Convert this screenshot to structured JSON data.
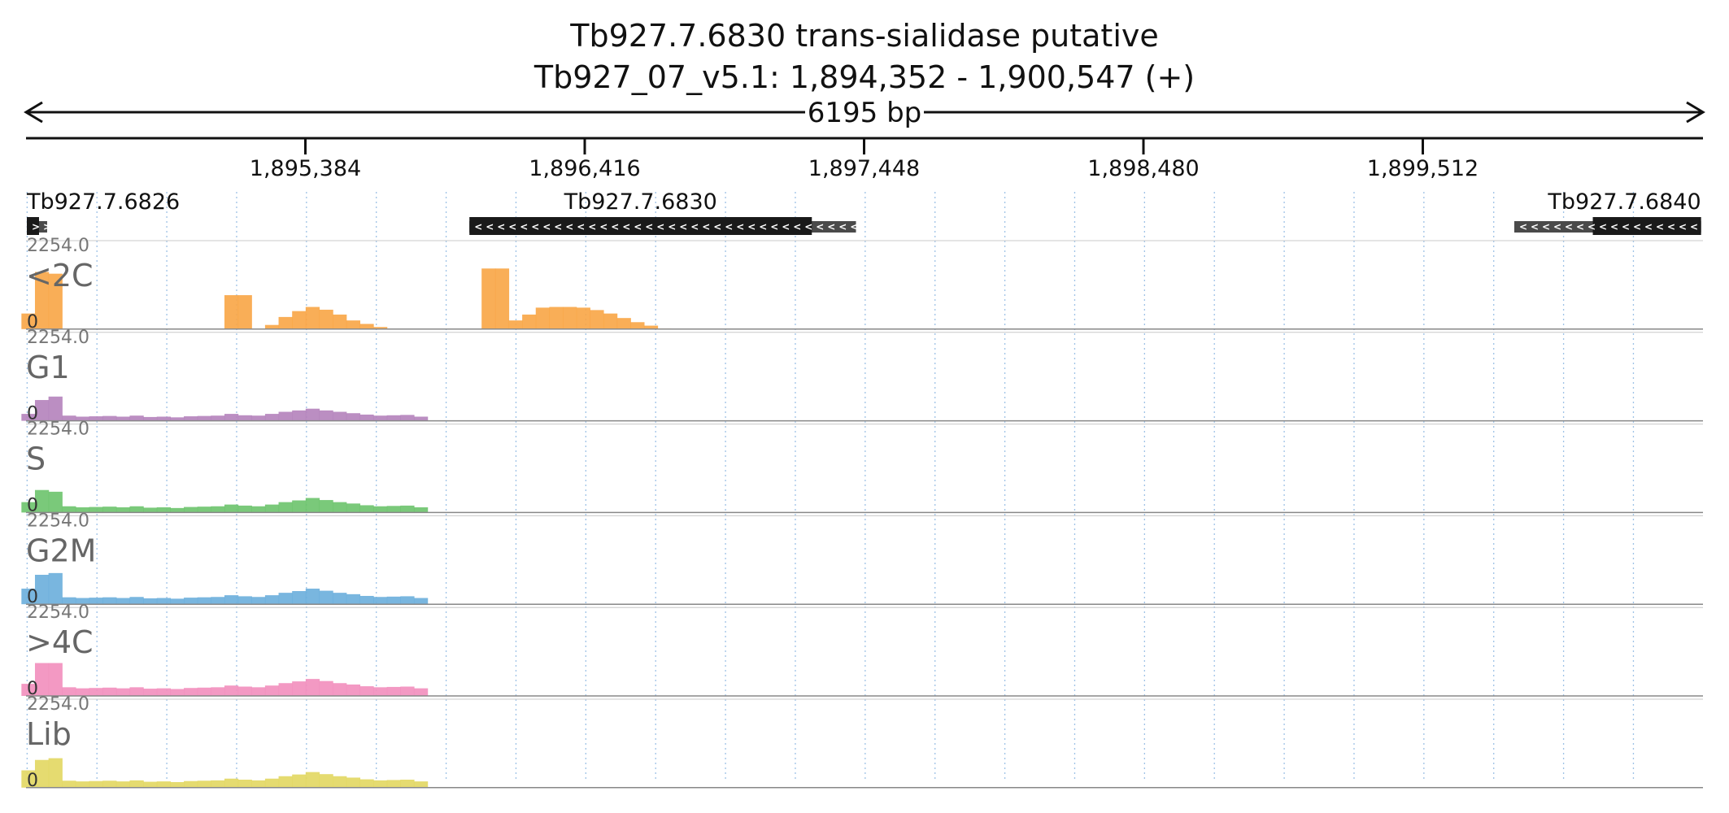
{
  "chart_data": {
    "type": "area",
    "title_line1": "Tb927.7.6830  trans-sialidase  putative",
    "title_line2": "Tb927_07_v5.1: 1,894,352 - 1,900,547 (+)",
    "span_label": "6195 bp",
    "region": {
      "start": 1894352,
      "end": 1900547
    },
    "ticks": [
      {
        "pos": 1895384,
        "label": "1,895,384"
      },
      {
        "pos": 1896416,
        "label": "1,896,416"
      },
      {
        "pos": 1897448,
        "label": "1,897,448"
      },
      {
        "pos": 1898480,
        "label": "1,898,480"
      },
      {
        "pos": 1899512,
        "label": "1,899,512"
      }
    ],
    "genes": [
      {
        "id": "Tb927.7.6826",
        "strand": "+",
        "utr": [
          1894355,
          1894430
        ],
        "cds": [
          1894355,
          1894400
        ],
        "label_anchor": "start"
      },
      {
        "id": "Tb927.7.6830",
        "strand": "-",
        "utr": [
          1895990,
          1897418
        ],
        "cds": [
          1895990,
          1897255
        ],
        "label_anchor": "cds-middle"
      },
      {
        "id": "Tb927.7.6840",
        "strand": "-",
        "utr": [
          1899850,
          1900540
        ],
        "cds": [
          1900140,
          1900540
        ],
        "label_anchor": "end"
      }
    ],
    "track_ymax_label": "2254.0",
    "track_ymin_label": "0",
    "ylim": [
      0,
      2254
    ],
    "x": [
      1894360,
      1894410,
      1894460,
      1894510,
      1894560,
      1894610,
      1894660,
      1894710,
      1894760,
      1894810,
      1894860,
      1894910,
      1894960,
      1895010,
      1895060,
      1895110,
      1895160,
      1895210,
      1895260,
      1895310,
      1895360,
      1895410,
      1895460,
      1895510,
      1895560,
      1895610,
      1895660,
      1895710,
      1895760,
      1895810,
      1895860,
      1895910,
      1895960,
      1896010,
      1896060,
      1896110,
      1896160,
      1896210,
      1896260,
      1896310,
      1896360,
      1896410,
      1896460,
      1896510,
      1896560,
      1896610,
      1896660,
      1896710,
      1896760,
      1896810,
      1896860,
      1896910,
      1896960,
      1897010,
      1897060,
      1897110,
      1897160,
      1897210,
      1897260,
      1897310,
      1897360,
      1897410,
      1897460,
      1897510,
      1897560,
      1897610,
      1897660,
      1897710,
      1897760,
      1897810,
      1897860,
      1897910,
      1897960,
      1898010,
      1898060,
      1898110,
      1898160,
      1898210,
      1898260,
      1898310,
      1898360,
      1898410,
      1898460,
      1898510,
      1898560,
      1898610,
      1898660,
      1898710,
      1898760,
      1898810,
      1898860,
      1898910,
      1898960,
      1899010,
      1899060,
      1899110,
      1899160,
      1899210,
      1899260,
      1899310,
      1899360,
      1899410,
      1899460,
      1899510,
      1899560,
      1899610,
      1899660,
      1899710,
      1899760,
      1899810,
      1899860,
      1899910,
      1899960,
      1900010,
      1900060,
      1900110,
      1900160,
      1900210,
      1900260,
      1900310,
      1900360,
      1900410,
      1900460,
      1900510,
      1900540
    ],
    "series": [
      {
        "name": "<2C",
        "color": "#f8a545",
        "values": [
          450,
          1650,
          1600,
          0,
          0,
          0,
          0,
          0,
          0,
          0,
          0,
          0,
          0,
          0,
          0,
          980,
          980,
          0,
          120,
          350,
          520,
          640,
          560,
          420,
          250,
          150,
          60,
          0,
          0,
          0,
          0,
          0,
          0,
          0,
          1750,
          1750,
          250,
          420,
          620,
          640,
          640,
          620,
          550,
          450,
          320,
          200,
          100,
          20,
          0,
          0,
          0,
          0,
          0,
          0,
          0,
          0,
          0,
          0,
          0,
          0,
          0,
          0,
          0,
          0,
          0,
          0,
          0,
          0,
          0,
          0,
          0,
          0,
          0,
          0,
          0,
          0,
          0,
          0,
          0,
          0,
          0,
          0,
          0,
          0,
          0,
          0,
          0,
          0,
          0,
          0,
          0,
          0,
          0,
          0,
          0,
          0,
          0,
          0,
          0,
          0,
          0,
          0,
          0,
          0,
          0,
          0,
          0,
          0,
          0,
          0,
          0,
          0,
          0,
          0,
          0,
          0,
          0,
          0,
          0,
          0,
          0,
          0,
          0,
          0,
          0
        ]
      },
      {
        "name": "G1",
        "color": "#b482bb",
        "values": [
          200,
          600,
          700,
          150,
          120,
          130,
          140,
          120,
          150,
          110,
          120,
          100,
          130,
          140,
          150,
          200,
          160,
          150,
          200,
          260,
          300,
          350,
          300,
          260,
          220,
          180,
          150,
          160,
          170,
          120,
          0,
          0,
          0,
          0,
          0,
          0,
          0,
          0,
          0,
          0,
          0,
          0,
          0,
          0,
          0,
          0,
          0,
          0,
          0,
          0,
          0,
          0,
          0,
          0,
          0,
          0,
          0,
          0,
          0,
          0,
          0,
          0,
          0,
          0,
          0,
          0,
          0,
          0,
          0,
          0,
          0,
          0,
          0,
          0,
          0,
          0,
          0,
          0,
          0,
          0,
          0,
          0,
          0,
          0,
          0,
          0,
          0,
          0,
          0,
          0,
          0,
          0,
          0,
          0,
          0,
          0,
          0,
          0,
          0,
          0,
          0,
          0,
          0,
          0,
          0,
          0,
          0,
          0,
          0,
          0,
          0,
          0,
          0,
          0,
          0,
          0,
          0,
          0,
          0,
          0,
          0,
          0,
          0,
          0,
          0
        ]
      },
      {
        "name": "S",
        "color": "#6cc36c",
        "values": [
          300,
          650,
          600,
          180,
          150,
          160,
          170,
          150,
          180,
          140,
          150,
          130,
          160,
          170,
          180,
          230,
          200,
          180,
          230,
          300,
          350,
          420,
          360,
          300,
          260,
          210,
          180,
          190,
          200,
          150,
          0,
          0,
          0,
          0,
          0,
          0,
          0,
          0,
          0,
          0,
          0,
          0,
          0,
          0,
          0,
          0,
          0,
          0,
          0,
          0,
          0,
          0,
          0,
          0,
          0,
          0,
          0,
          0,
          0,
          0,
          0,
          0,
          0,
          0,
          0,
          0,
          0,
          0,
          0,
          0,
          0,
          0,
          0,
          0,
          0,
          0,
          0,
          0,
          0,
          0,
          0,
          0,
          0,
          0,
          0,
          0,
          0,
          0,
          0,
          0,
          0,
          0,
          0,
          0,
          0,
          0,
          0,
          0,
          0,
          0,
          0,
          0,
          0,
          0,
          0,
          0,
          0,
          0,
          0,
          0,
          0,
          0,
          0,
          0,
          0,
          0,
          0,
          0,
          0,
          0,
          0,
          0,
          0,
          0,
          0
        ]
      },
      {
        "name": "G2M",
        "color": "#6aaedc",
        "values": [
          450,
          850,
          900,
          200,
          180,
          190,
          200,
          180,
          210,
          170,
          180,
          160,
          190,
          200,
          210,
          260,
          230,
          210,
          260,
          330,
          380,
          450,
          390,
          330,
          290,
          240,
          210,
          220,
          230,
          180,
          0,
          0,
          0,
          0,
          0,
          0,
          0,
          0,
          0,
          0,
          0,
          0,
          0,
          0,
          0,
          0,
          0,
          0,
          0,
          0,
          0,
          0,
          0,
          0,
          0,
          0,
          0,
          0,
          0,
          0,
          0,
          0,
          0,
          0,
          0,
          0,
          0,
          0,
          0,
          0,
          0,
          0,
          0,
          0,
          0,
          0,
          0,
          0,
          0,
          0,
          0,
          0,
          0,
          0,
          0,
          0,
          0,
          0,
          0,
          0,
          0,
          0,
          0,
          0,
          0,
          0,
          0,
          0,
          0,
          0,
          0,
          0,
          0,
          0,
          0,
          0,
          0,
          0,
          0,
          0,
          0,
          0,
          0,
          0,
          0,
          0,
          0,
          0,
          0,
          0,
          0,
          0,
          0,
          0,
          0
        ]
      },
      {
        "name": ">4C",
        "color": "#f28ebd",
        "values": [
          350,
          950,
          950,
          250,
          220,
          230,
          240,
          220,
          250,
          210,
          220,
          200,
          230,
          240,
          250,
          300,
          270,
          250,
          300,
          370,
          420,
          490,
          430,
          370,
          330,
          280,
          250,
          260,
          270,
          220,
          0,
          0,
          0,
          0,
          0,
          0,
          0,
          0,
          0,
          0,
          0,
          0,
          0,
          0,
          0,
          0,
          0,
          0,
          0,
          0,
          0,
          0,
          0,
          0,
          0,
          0,
          0,
          0,
          0,
          0,
          0,
          0,
          0,
          0,
          0,
          0,
          0,
          0,
          0,
          0,
          0,
          0,
          0,
          0,
          0,
          0,
          0,
          0,
          0,
          0,
          0,
          0,
          0,
          0,
          0,
          0,
          0,
          0,
          0,
          0,
          0,
          0,
          0,
          0,
          0,
          0,
          0,
          0,
          0,
          0,
          0,
          0,
          0,
          0,
          0,
          0,
          0,
          0,
          0,
          0,
          0,
          0,
          0,
          0,
          0,
          0,
          0,
          0,
          0,
          0,
          0,
          0,
          0,
          0,
          0
        ]
      },
      {
        "name": "Lib",
        "color": "#e2d760",
        "values": [
          500,
          800,
          850,
          200,
          180,
          190,
          200,
          180,
          210,
          170,
          180,
          160,
          190,
          200,
          210,
          260,
          230,
          210,
          260,
          330,
          380,
          450,
          390,
          330,
          290,
          240,
          210,
          220,
          230,
          180,
          0,
          0,
          0,
          0,
          0,
          0,
          0,
          0,
          0,
          0,
          0,
          0,
          0,
          0,
          0,
          0,
          0,
          0,
          0,
          0,
          0,
          0,
          0,
          0,
          0,
          0,
          0,
          0,
          0,
          0,
          0,
          0,
          0,
          0,
          0,
          0,
          0,
          0,
          0,
          0,
          0,
          0,
          0,
          0,
          0,
          0,
          0,
          0,
          0,
          0,
          0,
          0,
          0,
          0,
          0,
          0,
          0,
          0,
          0,
          0,
          0,
          0,
          0,
          0,
          0,
          0,
          0,
          0,
          0,
          0,
          0,
          0,
          0,
          0,
          0,
          0,
          0,
          0,
          0,
          0,
          0,
          0,
          0,
          0,
          0,
          0,
          0,
          0,
          0,
          0,
          0,
          0,
          0,
          0,
          0
        ]
      }
    ],
    "gridlines": "dotted vertical, light blue",
    "legend": "track names at top-left of each track"
  }
}
